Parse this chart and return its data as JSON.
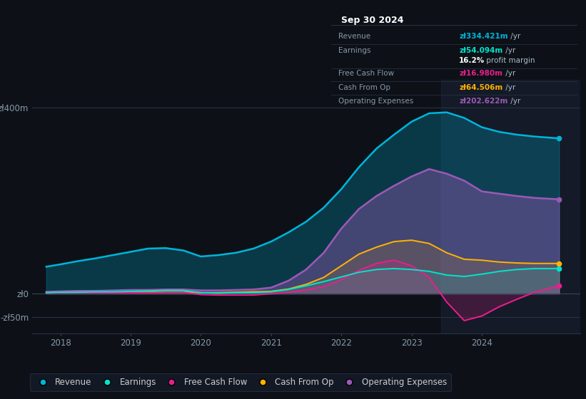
{
  "bg_color": "#0d1117",
  "plot_bg_color": "#131a27",
  "highlight_color": "#1a2235",
  "grid_color": "#2a3040",
  "title_box_bg": "#0a0d13",
  "ytick_color": "#8899aa",
  "xtick_color": "#8899aa",
  "yticks_labels": [
    "zł400m",
    "zł0",
    "-zł50m"
  ],
  "ytick_vals": [
    400,
    0,
    -50
  ],
  "ylim": [
    -85,
    460
  ],
  "xlim_start": 2017.6,
  "xlim_end": 2025.4,
  "xlabel_years": [
    2018,
    2019,
    2020,
    2021,
    2022,
    2023,
    2024
  ],
  "highlight_x_start": 2023.42,
  "highlight_x_end": 2025.4,
  "title_box": {
    "date": "Sep 30 2024",
    "rows": [
      {
        "label": "Revenue",
        "value": "zł334.421m",
        "value_color": "#00b4d8",
        "suffix": " /yr"
      },
      {
        "label": "Earnings",
        "value": "zł54.094m",
        "value_color": "#00e5cc",
        "suffix": " /yr"
      },
      {
        "label": "",
        "value": "16.2%",
        "value_color": "#ffffff",
        "suffix": " profit margin"
      },
      {
        "label": "Free Cash Flow",
        "value": "zł16.980m",
        "value_color": "#e91e8c",
        "suffix": " /yr"
      },
      {
        "label": "Cash From Op",
        "value": "zł64.506m",
        "value_color": "#ffb300",
        "suffix": " /yr"
      },
      {
        "label": "Operating Expenses",
        "value": "zł202.622m",
        "value_color": "#9b59b6",
        "suffix": " /yr"
      }
    ]
  },
  "series": {
    "revenue": {
      "color": "#00b4d8",
      "fill_alpha": 0.25,
      "linewidth": 1.8,
      "label": "Revenue",
      "dot_color": "#00b4d8"
    },
    "earnings": {
      "color": "#00e5cc",
      "fill_alpha": 0.12,
      "linewidth": 1.4,
      "label": "Earnings",
      "dot_color": "#00e5cc"
    },
    "free_cash_flow": {
      "color": "#e91e8c",
      "fill_alpha": 0.2,
      "linewidth": 1.4,
      "label": "Free Cash Flow",
      "dot_color": "#e91e8c"
    },
    "cash_from_op": {
      "color": "#ffb300",
      "fill_alpha": 0.12,
      "linewidth": 1.4,
      "label": "Cash From Op",
      "dot_color": "#ffb300"
    },
    "op_expenses": {
      "color": "#9b59b6",
      "fill_alpha": 0.4,
      "linewidth": 1.8,
      "label": "Operating Expenses",
      "dot_color": "#9b59b6"
    }
  },
  "x": [
    2017.8,
    2018.0,
    2018.25,
    2018.5,
    2018.75,
    2019.0,
    2019.25,
    2019.5,
    2019.75,
    2020.0,
    2020.25,
    2020.5,
    2020.75,
    2021.0,
    2021.25,
    2021.5,
    2021.75,
    2022.0,
    2022.25,
    2022.5,
    2022.75,
    2023.0,
    2023.25,
    2023.5,
    2023.75,
    2024.0,
    2024.25,
    2024.5,
    2024.75,
    2025.1
  ],
  "revenue": [
    58,
    63,
    70,
    76,
    83,
    90,
    97,
    98,
    93,
    80,
    83,
    88,
    97,
    112,
    132,
    155,
    185,
    225,
    272,
    312,
    342,
    370,
    388,
    390,
    378,
    358,
    348,
    342,
    338,
    334
  ],
  "op_expenses": [
    4,
    5,
    6,
    6,
    7,
    8,
    8,
    9,
    9,
    7,
    7,
    8,
    9,
    13,
    28,
    52,
    88,
    140,
    182,
    210,
    232,
    252,
    268,
    258,
    243,
    220,
    215,
    210,
    206,
    203
  ],
  "cash_from_op": [
    2,
    2,
    3,
    3,
    3,
    3,
    3,
    4,
    4,
    2,
    2,
    3,
    4,
    5,
    10,
    20,
    35,
    60,
    85,
    100,
    112,
    115,
    108,
    88,
    74,
    72,
    68,
    66,
    65,
    65
  ],
  "free_cash_flow": [
    1,
    2,
    2,
    2,
    2,
    2,
    2,
    3,
    3,
    -2,
    -3,
    -3,
    -3,
    0,
    3,
    8,
    15,
    30,
    50,
    65,
    72,
    60,
    35,
    -18,
    -58,
    -48,
    -28,
    -12,
    3,
    17
  ],
  "earnings": [
    2,
    3,
    3,
    4,
    4,
    5,
    6,
    7,
    7,
    2,
    1,
    2,
    2,
    4,
    9,
    17,
    26,
    36,
    46,
    52,
    54,
    52,
    48,
    40,
    37,
    42,
    48,
    52,
    54,
    54
  ],
  "legend_bg": "#151c28",
  "legend_border": "#2a3040",
  "legend_text": "#cccccc"
}
